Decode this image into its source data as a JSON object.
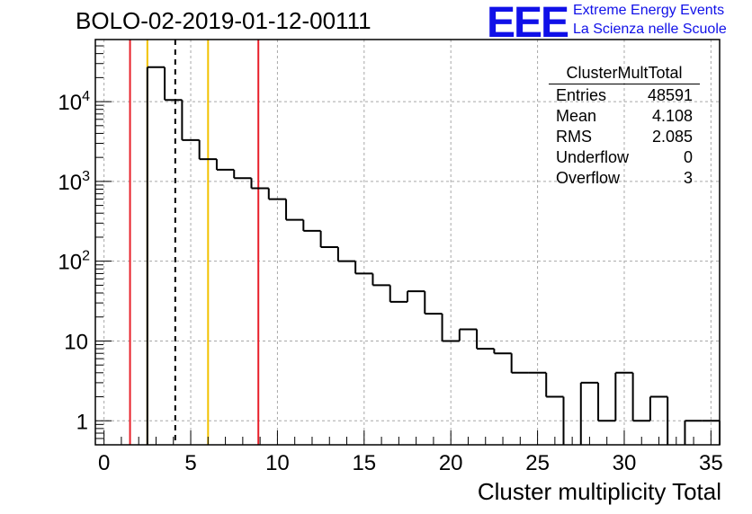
{
  "header": {
    "title": "BOLO-02-2019-01-12-00111",
    "logo_text": "EEE",
    "logo_line1": "Extreme Energy Events",
    "logo_line2": "La Scienza nelle Scuole"
  },
  "stats_box": {
    "name": "ClusterMultTotal",
    "rows": [
      {
        "label": "Entries",
        "value": "48591"
      },
      {
        "label": "Mean",
        "value": "4.108"
      },
      {
        "label": "RMS",
        "value": "2.085"
      },
      {
        "label": "Underflow",
        "value": "0"
      },
      {
        "label": "Overflow",
        "value": "3"
      }
    ]
  },
  "chart_data": {
    "type": "bar",
    "histogram": true,
    "xlabel": "Cluster multiplicity Total",
    "ylabel": "",
    "xlim": [
      -0.5,
      35.5
    ],
    "ylim": [
      0.5,
      60000
    ],
    "y_scale": "log",
    "grid": true,
    "x_ticks": [
      "0",
      "5",
      "10",
      "15",
      "20",
      "25",
      "30",
      "35"
    ],
    "y_ticks": [
      {
        "value": 1,
        "label": "1"
      },
      {
        "value": 10,
        "label": "10"
      },
      {
        "value": 100,
        "label": "10^2"
      },
      {
        "value": 1000,
        "label": "10^3"
      },
      {
        "value": 10000,
        "label": "10^4"
      }
    ],
    "bin_width": 1,
    "bins": [
      {
        "x": 0,
        "value": 0
      },
      {
        "x": 1,
        "value": 0
      },
      {
        "x": 2,
        "value": 0
      },
      {
        "x": 3,
        "value": 27000
      },
      {
        "x": 4,
        "value": 10500
      },
      {
        "x": 5,
        "value": 3300
      },
      {
        "x": 6,
        "value": 1900
      },
      {
        "x": 7,
        "value": 1400
      },
      {
        "x": 8,
        "value": 1100
      },
      {
        "x": 9,
        "value": 820
      },
      {
        "x": 10,
        "value": 600
      },
      {
        "x": 11,
        "value": 330
      },
      {
        "x": 12,
        "value": 240
      },
      {
        "x": 13,
        "value": 150
      },
      {
        "x": 14,
        "value": 100
      },
      {
        "x": 15,
        "value": 70
      },
      {
        "x": 16,
        "value": 50
      },
      {
        "x": 17,
        "value": 31
      },
      {
        "x": 18,
        "value": 42
      },
      {
        "x": 19,
        "value": 22
      },
      {
        "x": 20,
        "value": 10
      },
      {
        "x": 21,
        "value": 14
      },
      {
        "x": 22,
        "value": 8
      },
      {
        "x": 23,
        "value": 7
      },
      {
        "x": 24,
        "value": 4
      },
      {
        "x": 25,
        "value": 4
      },
      {
        "x": 26,
        "value": 2
      },
      {
        "x": 27,
        "value": 0
      },
      {
        "x": 28,
        "value": 3
      },
      {
        "x": 29,
        "value": 1
      },
      {
        "x": 30,
        "value": 4
      },
      {
        "x": 31,
        "value": 1
      },
      {
        "x": 32,
        "value": 2
      },
      {
        "x": 33,
        "value": 0
      },
      {
        "x": 34,
        "value": 1
      },
      {
        "x": 35,
        "value": 1
      }
    ],
    "vertical_lines": [
      {
        "x": 1.5,
        "color": "#e8202a",
        "style": "solid"
      },
      {
        "x": 2.5,
        "color": "#f2c200",
        "style": "solid"
      },
      {
        "x": 4.108,
        "color": "#000000",
        "style": "dashed"
      },
      {
        "x": 6.0,
        "color": "#f2c200",
        "style": "solid"
      },
      {
        "x": 8.9,
        "color": "#e8202a",
        "style": "solid"
      }
    ]
  }
}
